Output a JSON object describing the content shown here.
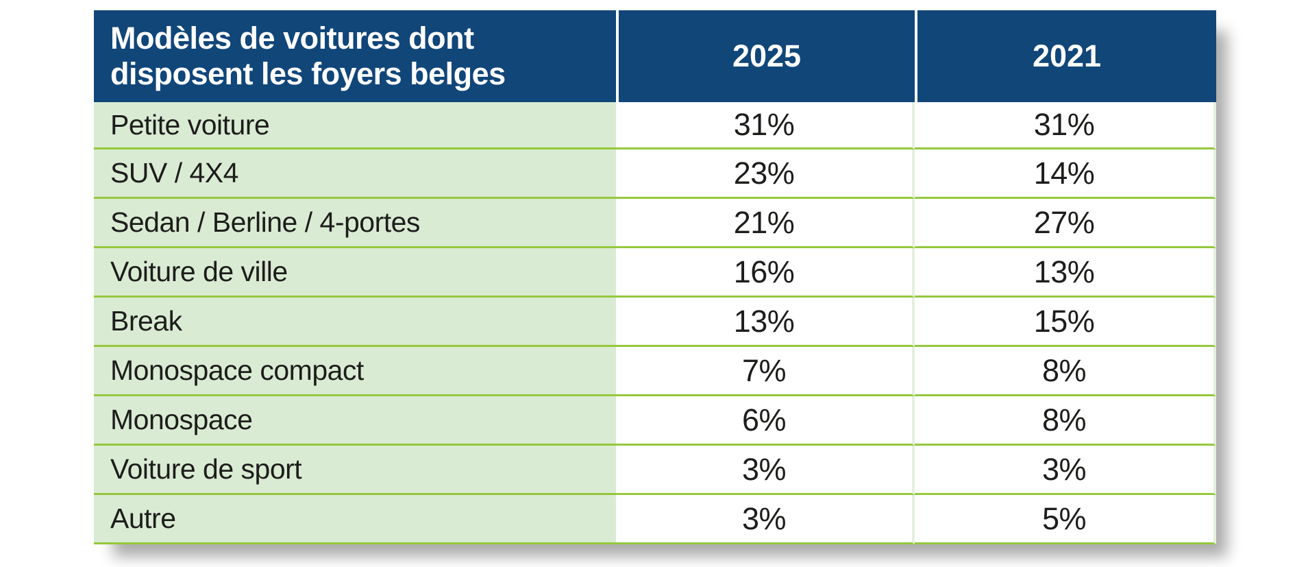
{
  "table": {
    "header": {
      "title": "Modèles de voitures dont disposent les foyers belges",
      "title_lines": [
        "Modèles de voitures dont",
        "disposent les foyers belges"
      ],
      "col_2025": "2025",
      "col_2021": "2021"
    },
    "rows": [
      {
        "label": "Petite voiture",
        "y2025": "31%",
        "y2021": "31%"
      },
      {
        "label": "SUV / 4X4",
        "y2025": "23%",
        "y2021": "14%"
      },
      {
        "label": "Sedan / Berline / 4-portes",
        "y2025": "21%",
        "y2021": "27%"
      },
      {
        "label": "Voiture de ville",
        "y2025": "16%",
        "y2021": "13%"
      },
      {
        "label": "Break",
        "y2025": "13%",
        "y2021": "15%"
      },
      {
        "label": "Monospace compact",
        "y2025": "7%",
        "y2021": "8%"
      },
      {
        "label": "Monospace",
        "y2025": "6%",
        "y2021": "8%"
      },
      {
        "label": "Voiture de sport",
        "y2025": "3%",
        "y2021": "3%"
      },
      {
        "label": "Autre",
        "y2025": "3%",
        "y2021": "5%"
      }
    ]
  },
  "colors": {
    "c-header-bg": "#114679",
    "c-header-text": "#ffffff",
    "c-row-bg": "#daebd4",
    "c-divider": "#94c83c",
    "c-pale-line": "#e4f0de",
    "c-text": "#1d1d1b",
    "c-page-bg": "#ffffff"
  },
  "chart_data": {
    "type": "table",
    "title": "Modèles de voitures dont disposent les foyers belges",
    "columns": [
      "Modèles de voitures dont disposent les foyers belges",
      "2025",
      "2021"
    ],
    "categories": [
      "Petite voiture",
      "SUV / 4X4",
      "Sedan / Berline / 4-portes",
      "Voiture de ville",
      "Break",
      "Monospace compact",
      "Monospace",
      "Voiture de sport",
      "Autre"
    ],
    "series": [
      {
        "name": "2025",
        "values": [
          31,
          23,
          21,
          16,
          13,
          7,
          6,
          3,
          3
        ]
      },
      {
        "name": "2021",
        "values": [
          31,
          14,
          27,
          13,
          15,
          8,
          8,
          3,
          5
        ]
      }
    ],
    "units": "%",
    "legend_position": "none",
    "grid": "row-dividers"
  }
}
